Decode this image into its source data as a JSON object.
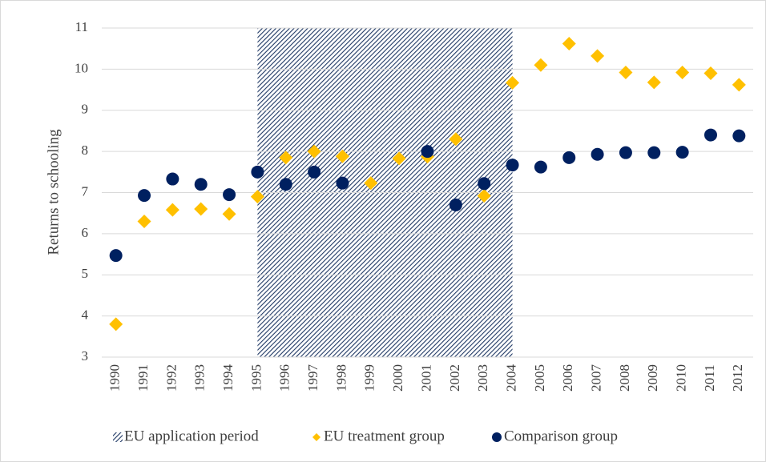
{
  "chart_data": {
    "type": "scatter",
    "y_label": "Returns to schooling",
    "categories": [
      "1990",
      "1991",
      "1992",
      "1993",
      "1994",
      "1995",
      "1996",
      "1997",
      "1998",
      "1999",
      "2000",
      "2001",
      "2002",
      "2003",
      "2004",
      "2005",
      "2006",
      "2007",
      "2008",
      "2009",
      "2010",
      "2011",
      "2012"
    ],
    "shaded_region": {
      "name": "EU application period",
      "start": "1995",
      "end": "2004",
      "color": "#1f3864"
    },
    "series": [
      {
        "name": "EU treatment group",
        "color": "#ffc000",
        "marker": "diamond",
        "values": [
          3.8,
          6.3,
          6.58,
          6.6,
          6.48,
          6.9,
          7.85,
          8.0,
          7.88,
          7.23,
          7.83,
          7.87,
          8.3,
          6.92,
          9.67,
          10.1,
          10.62,
          10.32,
          9.92,
          9.68,
          9.92,
          9.9,
          9.62
        ]
      },
      {
        "name": "Comparison group",
        "color": "#002060",
        "marker": "circle",
        "values": [
          5.47,
          6.93,
          7.33,
          7.2,
          6.95,
          7.5,
          7.2,
          7.5,
          7.23,
          null,
          null,
          8.0,
          6.7,
          7.22,
          7.67,
          7.62,
          7.85,
          7.93,
          7.97,
          7.97,
          7.98,
          8.4,
          8.38
        ]
      }
    ],
    "ylim": [
      3,
      11
    ],
    "yticks": [
      3,
      4,
      5,
      6,
      7,
      8,
      9,
      10,
      11
    ],
    "grid": true,
    "legend": "bottom"
  }
}
